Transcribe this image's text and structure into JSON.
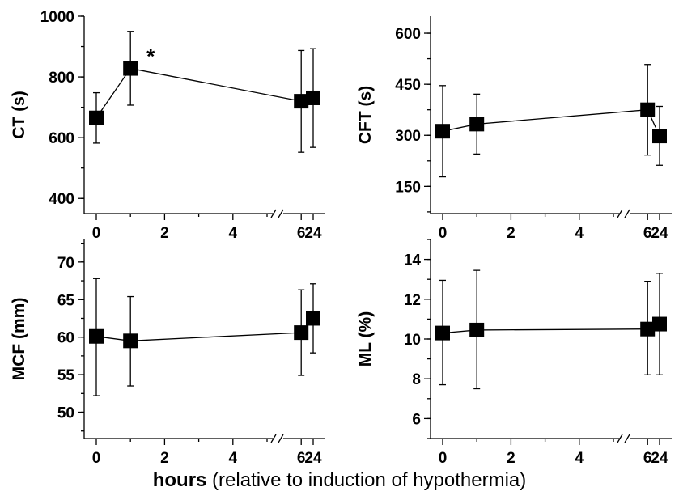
{
  "xlabel_bold": "hours",
  "xlabel_rest": " (relative to induction of hypothermia)",
  "chart_data": [
    {
      "type": "line",
      "ylabel": "CT (s)",
      "x": [
        0,
        1,
        6,
        24
      ],
      "y": [
        665,
        828,
        720,
        731
      ],
      "err_lower": [
        582,
        707,
        552,
        568
      ],
      "err_upper": [
        748,
        950,
        887,
        893
      ],
      "ylim": [
        350,
        1000
      ],
      "yticks": [
        400,
        600,
        800,
        1000
      ],
      "yminor_step": 100,
      "xticks": [
        0,
        2,
        4,
        6,
        24
      ],
      "x_break": "between 6 and 24",
      "annotation": "*",
      "annotation_at_x": 1
    },
    {
      "type": "line",
      "ylabel": "CFT (s)",
      "x": [
        0,
        1,
        6,
        24
      ],
      "y": [
        312,
        333,
        375,
        298
      ],
      "err_lower": [
        178,
        245,
        242,
        212
      ],
      "err_upper": [
        446,
        421,
        508,
        385
      ],
      "ylim": [
        70,
        650
      ],
      "yticks": [
        150,
        300,
        450,
        600
      ],
      "yminor_step": 75,
      "xticks": [
        0,
        2,
        4,
        6,
        24
      ],
      "x_break": "between 6 and 24"
    },
    {
      "type": "line",
      "ylabel": "MCF (mm)",
      "x": [
        0,
        1,
        6,
        24
      ],
      "y": [
        60.1,
        59.5,
        60.6,
        62.5
      ],
      "err_lower": [
        52.2,
        53.5,
        54.9,
        57.9
      ],
      "err_upper": [
        67.8,
        65.4,
        66.3,
        67.1
      ],
      "ylim": [
        46.5,
        73
      ],
      "yticks": [
        50,
        55,
        60,
        65,
        70
      ],
      "yminor_step": 2.5,
      "xticks": [
        0,
        2,
        4,
        6,
        24
      ],
      "x_break": "between 6 and 24"
    },
    {
      "type": "line",
      "ylabel": "ML (%)",
      "x": [
        0,
        1,
        6,
        24
      ],
      "y": [
        10.3,
        10.45,
        10.5,
        10.75
      ],
      "err_lower": [
        7.7,
        7.5,
        8.2,
        8.2
      ],
      "err_upper": [
        12.95,
        13.45,
        12.9,
        13.3
      ],
      "ylim": [
        5,
        15
      ],
      "yticks": [
        6,
        8,
        10,
        12,
        14
      ],
      "yminor_step": 1,
      "xticks": [
        0,
        2,
        4,
        6,
        24
      ],
      "x_break": "between 6 and 24"
    }
  ]
}
